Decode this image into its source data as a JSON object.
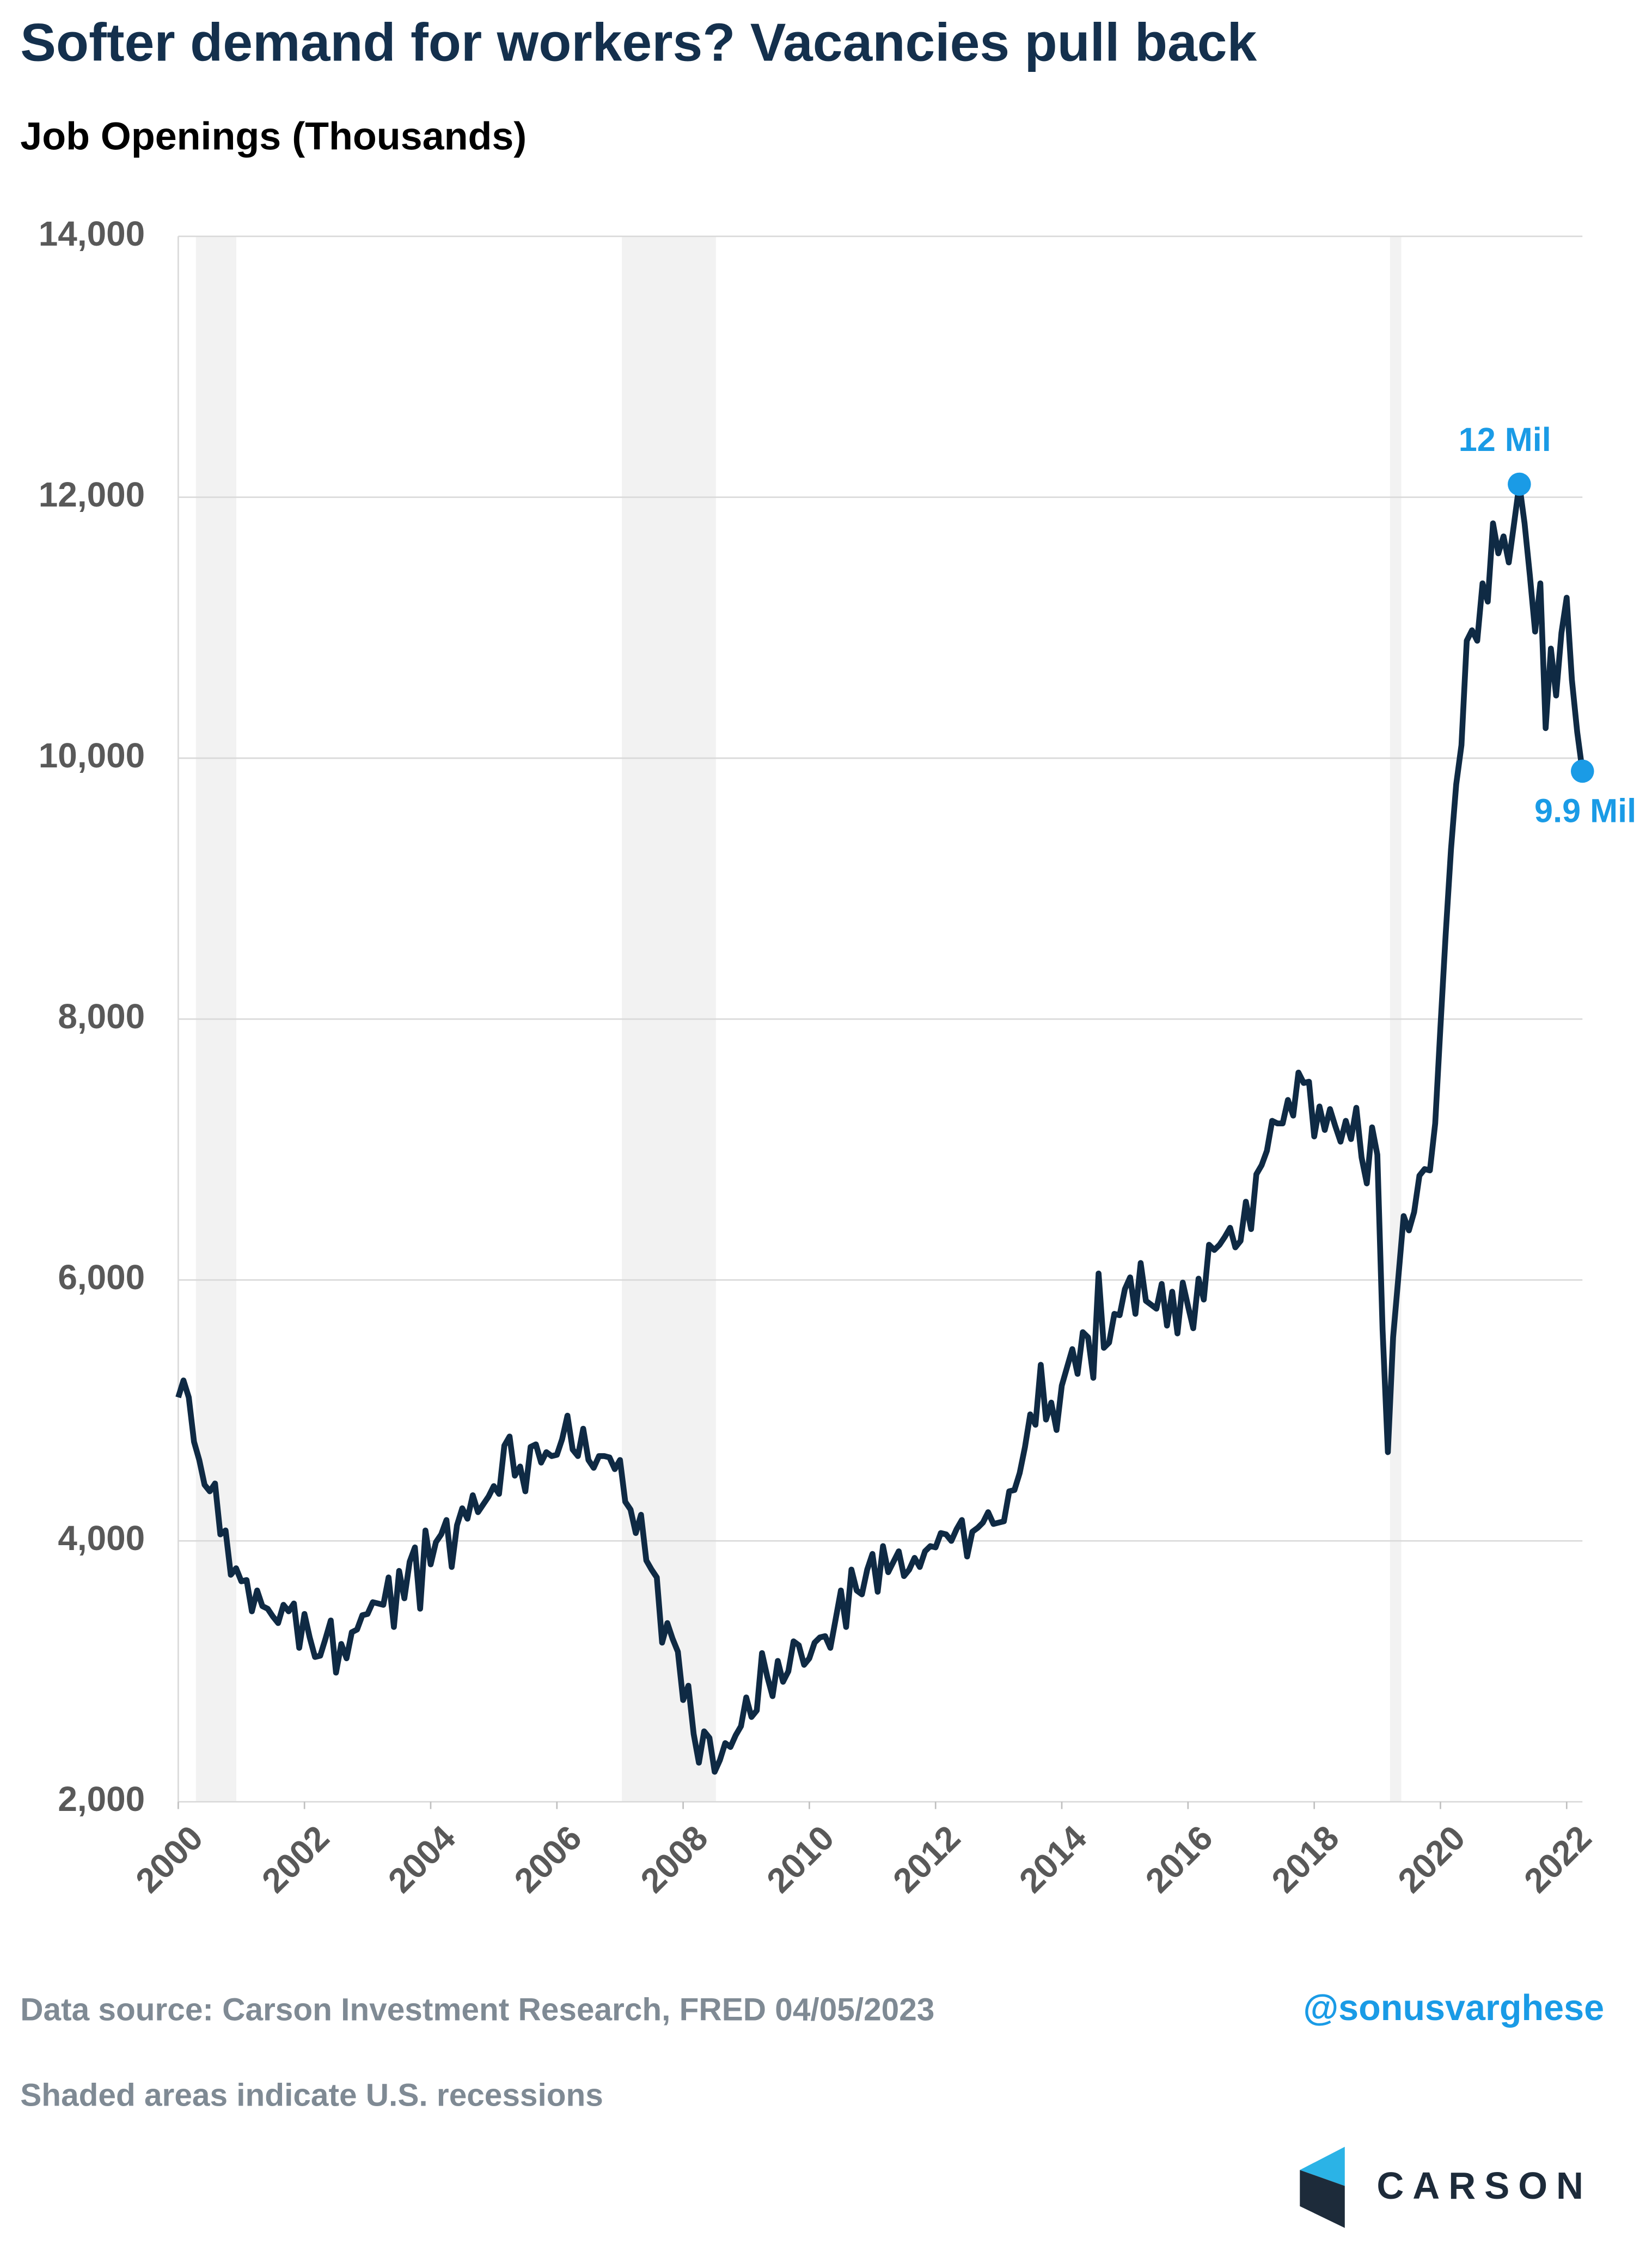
{
  "chart_data": {
    "type": "line",
    "title": "Softer demand for workers? Vacancies pull back",
    "subtitle": "Job Openings (Thousands)",
    "source": "Data source: Carson Investment Research, FRED   04/05/2023",
    "handle": "@sonusvarghese",
    "note": "Shaded areas indicate U.S. recessions",
    "logo": "CARSON",
    "ylim": [
      2000,
      14000
    ],
    "yticks": [
      {
        "value": 2000,
        "label": "2,000"
      },
      {
        "value": 4000,
        "label": "4,000"
      },
      {
        "value": 6000,
        "label": "6,000"
      },
      {
        "value": 8000,
        "label": "8,000"
      },
      {
        "value": 10000,
        "label": "10,000"
      },
      {
        "value": 12000,
        "label": "12,000"
      },
      {
        "value": 14000,
        "label": "14,000"
      }
    ],
    "xlim": [
      2000,
      2022.25
    ],
    "xticks": [
      2000,
      2002,
      2004,
      2006,
      2008,
      2010,
      2012,
      2014,
      2016,
      2018,
      2020,
      2022
    ],
    "grid": true,
    "recessions": [
      [
        2000.28,
        2000.92
      ],
      [
        2007.03,
        2008.52
      ],
      [
        2019.2,
        2019.38
      ]
    ],
    "annotations": [
      {
        "text": "12 Mil",
        "point": 255
      },
      {
        "text": "9.9 Mil",
        "point": 267
      }
    ],
    "x": [
      2000,
      2000.083,
      2000.167,
      2000.25,
      2000.333,
      2000.417,
      2000.5,
      2000.583,
      2000.667,
      2000.75,
      2000.833,
      2000.917,
      2001,
      2001.083,
      2001.167,
      2001.25,
      2001.333,
      2001.417,
      2001.5,
      2001.583,
      2001.667,
      2001.75,
      2001.833,
      2001.917,
      2002,
      2002.083,
      2002.167,
      2002.25,
      2002.333,
      2002.417,
      2002.5,
      2002.583,
      2002.667,
      2002.75,
      2002.833,
      2002.917,
      2003,
      2003.083,
      2003.167,
      2003.25,
      2003.333,
      2003.417,
      2003.5,
      2003.583,
      2003.667,
      2003.75,
      2003.833,
      2003.917,
      2004,
      2004.083,
      2004.167,
      2004.25,
      2004.333,
      2004.417,
      2004.5,
      2004.583,
      2004.667,
      2004.75,
      2004.833,
      2004.917,
      2005,
      2005.083,
      2005.167,
      2005.25,
      2005.333,
      2005.417,
      2005.5,
      2005.583,
      2005.667,
      2005.75,
      2005.833,
      2005.917,
      2006,
      2006.083,
      2006.167,
      2006.25,
      2006.333,
      2006.417,
      2006.5,
      2006.583,
      2006.667,
      2006.75,
      2006.833,
      2006.917,
      2007,
      2007.083,
      2007.167,
      2007.25,
      2007.333,
      2007.417,
      2007.5,
      2007.583,
      2007.667,
      2007.75,
      2007.833,
      2007.917,
      2008,
      2008.083,
      2008.167,
      2008.25,
      2008.333,
      2008.417,
      2008.5,
      2008.583,
      2008.667,
      2008.75,
      2008.833,
      2008.917,
      2009,
      2009.083,
      2009.167,
      2009.25,
      2009.333,
      2009.417,
      2009.5,
      2009.583,
      2009.667,
      2009.75,
      2009.833,
      2009.917,
      2010,
      2010.083,
      2010.167,
      2010.25,
      2010.333,
      2010.417,
      2010.5,
      2010.583,
      2010.667,
      2010.75,
      2010.833,
      2010.917,
      2011,
      2011.083,
      2011.167,
      2011.25,
      2011.333,
      2011.417,
      2011.5,
      2011.583,
      2011.667,
      2011.75,
      2011.833,
      2011.917,
      2012,
      2012.083,
      2012.167,
      2012.25,
      2012.333,
      2012.417,
      2012.5,
      2012.583,
      2012.667,
      2012.75,
      2012.833,
      2012.917,
      2013,
      2013.083,
      2013.167,
      2013.25,
      2013.333,
      2013.417,
      2013.5,
      2013.583,
      2013.667,
      2013.75,
      2013.833,
      2013.917,
      2014,
      2014.083,
      2014.167,
      2014.25,
      2014.333,
      2014.417,
      2014.5,
      2014.583,
      2014.667,
      2014.75,
      2014.833,
      2014.917,
      2015,
      2015.083,
      2015.167,
      2015.25,
      2015.333,
      2015.417,
      2015.5,
      2015.583,
      2015.667,
      2015.75,
      2015.833,
      2015.917,
      2016,
      2016.083,
      2016.167,
      2016.25,
      2016.333,
      2016.417,
      2016.5,
      2016.583,
      2016.667,
      2016.75,
      2016.833,
      2016.917,
      2017,
      2017.083,
      2017.167,
      2017.25,
      2017.333,
      2017.417,
      2017.5,
      2017.583,
      2017.667,
      2017.75,
      2017.833,
      2017.917,
      2018,
      2018.083,
      2018.167,
      2018.25,
      2018.333,
      2018.417,
      2018.5,
      2018.583,
      2018.667,
      2018.75,
      2018.833,
      2018.917,
      2019,
      2019.083,
      2019.167,
      2019.25,
      2019.333,
      2019.417,
      2019.5,
      2019.583,
      2019.667,
      2019.75,
      2019.833,
      2019.917,
      2020,
      2020.083,
      2020.167,
      2020.25,
      2020.333,
      2020.417,
      2020.5,
      2020.583,
      2020.667,
      2020.75,
      2020.833,
      2020.917,
      2021,
      2021.083,
      2021.167,
      2021.25,
      2021.333,
      2021.417,
      2021.5,
      2021.583,
      2021.667,
      2021.75,
      2021.833,
      2021.917,
      2022,
      2022.083,
      2022.167,
      2022.25
    ],
    "series": [
      {
        "name": "Job Openings",
        "color": "#0f2a44",
        "values": [
          5100,
          5230,
          5100,
          4760,
          4620,
          4430,
          4380,
          4440,
          4050,
          4080,
          3740,
          3790,
          3690,
          3700,
          3460,
          3620,
          3500,
          3480,
          3420,
          3370,
          3510,
          3460,
          3520,
          3180,
          3440,
          3260,
          3110,
          3120,
          3250,
          3390,
          2990,
          3210,
          3100,
          3300,
          3320,
          3430,
          3440,
          3530,
          3520,
          3510,
          3720,
          3340,
          3770,
          3560,
          3840,
          3950,
          3480,
          4080,
          3820,
          3990,
          4050,
          4160,
          3800,
          4120,
          4250,
          4170,
          4350,
          4220,
          4280,
          4340,
          4420,
          4360,
          4730,
          4800,
          4500,
          4570,
          4380,
          4720,
          4740,
          4600,
          4680,
          4650,
          4660,
          4780,
          4960,
          4700,
          4650,
          4860,
          4620,
          4560,
          4650,
          4650,
          4640,
          4550,
          4620,
          4300,
          4240,
          4060,
          4200,
          3850,
          3780,
          3720,
          3220,
          3370,
          3250,
          3150,
          2780,
          2890,
          2520,
          2300,
          2540,
          2490,
          2230,
          2320,
          2450,
          2420,
          2510,
          2580,
          2800,
          2650,
          2700,
          3140,
          2960,
          2810,
          3080,
          2920,
          3000,
          3230,
          3200,
          3050,
          3100,
          3220,
          3260,
          3270,
          3180,
          3400,
          3620,
          3340,
          3780,
          3620,
          3590,
          3780,
          3900,
          3610,
          3960,
          3760,
          3840,
          3920,
          3730,
          3780,
          3870,
          3800,
          3920,
          3960,
          3950,
          4060,
          4050,
          4000,
          4090,
          4160,
          3880,
          4070,
          4100,
          4140,
          4220,
          4130,
          4140,
          4150,
          4380,
          4390,
          4520,
          4720,
          4970,
          4890,
          5350,
          4930,
          5060,
          4850,
          5190,
          5330,
          5470,
          5280,
          5600,
          5560,
          5250,
          6050,
          5480,
          5520,
          5740,
          5730,
          5930,
          6020,
          5740,
          6130,
          5840,
          5810,
          5780,
          5970,
          5650,
          5910,
          5590,
          5980,
          5800,
          5630,
          6010,
          5850,
          6270,
          6230,
          6270,
          6330,
          6400,
          6250,
          6300,
          6600,
          6390,
          6810,
          6880,
          6990,
          7220,
          7200,
          7200,
          7380,
          7260,
          7590,
          7510,
          7520,
          7100,
          7330,
          7150,
          7310,
          7180,
          7060,
          7220,
          7080,
          7320,
          6940,
          6740,
          7170,
          6960,
          5620,
          4680,
          5560,
          6020,
          6490,
          6380,
          6520,
          6800,
          6850,
          6840,
          7200,
          7940,
          8650,
          9300,
          9800,
          10100,
          10900,
          10980,
          10900,
          11340,
          11200,
          11800,
          11570,
          11700,
          11500,
          11800,
          12100,
          11800,
          11400,
          10970,
          11340,
          10230,
          10840,
          10480,
          10960,
          11230,
          10600,
          10200,
          9900
        ]
      }
    ],
    "marker_color": "#1a9be6",
    "shade_color": "#f2f2f2"
  }
}
